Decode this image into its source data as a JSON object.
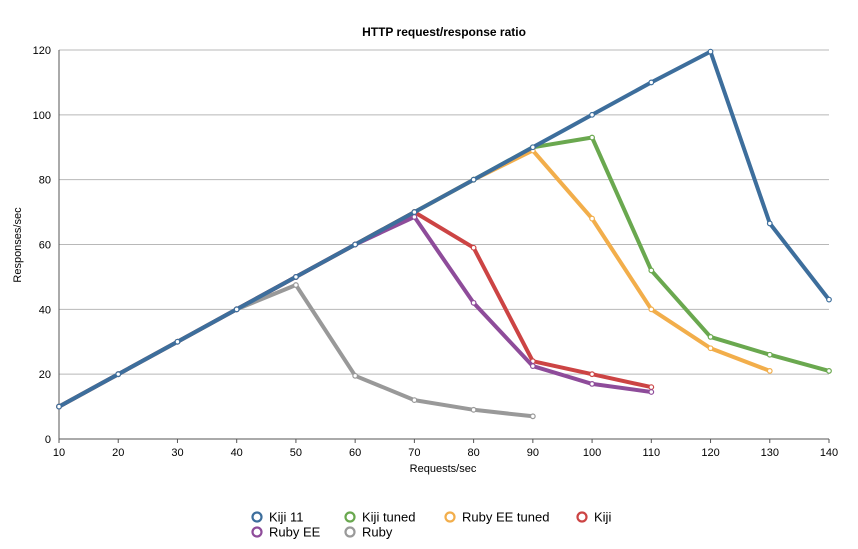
{
  "chart_data": {
    "type": "line",
    "title": "HTTP request/response ratio",
    "xlabel": "Requests/sec",
    "ylabel": "Responses/sec",
    "xlim": [
      10,
      140
    ],
    "ylim": [
      0,
      120
    ],
    "x_ticks": [
      10,
      20,
      30,
      40,
      50,
      60,
      70,
      80,
      90,
      100,
      110,
      120,
      130,
      140
    ],
    "y_ticks": [
      0,
      20,
      40,
      60,
      80,
      100,
      120
    ],
    "grid": true,
    "legend_position": "bottom",
    "series": [
      {
        "name": "Kiji tuned",
        "color": "#6aa84f",
        "points": [
          [
            10,
            10
          ],
          [
            20,
            20
          ],
          [
            30,
            30
          ],
          [
            40,
            40
          ],
          [
            50,
            50
          ],
          [
            60,
            60
          ],
          [
            70,
            70
          ],
          [
            80,
            80
          ],
          [
            90,
            90
          ],
          [
            100,
            93
          ],
          [
            110,
            52
          ],
          [
            120,
            31.5
          ],
          [
            130,
            26
          ],
          [
            140,
            21
          ]
        ]
      },
      {
        "name": "Ruby EE tuned",
        "color": "#f2ae4b",
        "points": [
          [
            10,
            10
          ],
          [
            20,
            20
          ],
          [
            30,
            30
          ],
          [
            40,
            40
          ],
          [
            50,
            50
          ],
          [
            60,
            60
          ],
          [
            70,
            70
          ],
          [
            80,
            80
          ],
          [
            90,
            89
          ],
          [
            100,
            68
          ],
          [
            110,
            40
          ],
          [
            120,
            28
          ],
          [
            130,
            21
          ]
        ]
      },
      {
        "name": "Kiji",
        "color": "#cc4444",
        "points": [
          [
            10,
            10
          ],
          [
            20,
            20
          ],
          [
            30,
            30
          ],
          [
            40,
            40
          ],
          [
            50,
            50
          ],
          [
            60,
            60
          ],
          [
            70,
            70
          ],
          [
            80,
            59
          ],
          [
            90,
            24
          ],
          [
            100,
            20
          ],
          [
            110,
            16
          ]
        ]
      },
      {
        "name": "Ruby EE",
        "color": "#8e4c9a",
        "points": [
          [
            10,
            10
          ],
          [
            20,
            20
          ],
          [
            30,
            30
          ],
          [
            40,
            40
          ],
          [
            50,
            50
          ],
          [
            60,
            60
          ],
          [
            70,
            68.5
          ],
          [
            80,
            42
          ],
          [
            90,
            22.5
          ],
          [
            100,
            17
          ],
          [
            110,
            14.5
          ]
        ]
      },
      {
        "name": "Ruby",
        "color": "#999999",
        "points": [
          [
            10,
            10
          ],
          [
            20,
            20
          ],
          [
            30,
            30
          ],
          [
            40,
            40
          ],
          [
            50,
            47.5
          ],
          [
            60,
            19.5
          ],
          [
            70,
            12
          ],
          [
            80,
            9
          ],
          [
            90,
            7
          ]
        ]
      },
      {
        "name": "Kiji 11",
        "color": "#3d6e9c",
        "points": [
          [
            10,
            10
          ],
          [
            20,
            20
          ],
          [
            30,
            30
          ],
          [
            40,
            40
          ],
          [
            50,
            50
          ],
          [
            60,
            60
          ],
          [
            70,
            70
          ],
          [
            80,
            80
          ],
          [
            90,
            90
          ],
          [
            100,
            100
          ],
          [
            110,
            110
          ],
          [
            120,
            119.5
          ],
          [
            130,
            66.5
          ],
          [
            140,
            43
          ]
        ]
      }
    ],
    "legend": [
      {
        "name": "Kiji 11",
        "color": "#3d6e9c"
      },
      {
        "name": "Kiji tuned",
        "color": "#6aa84f"
      },
      {
        "name": "Ruby EE tuned",
        "color": "#f2ae4b"
      },
      {
        "name": "Kiji",
        "color": "#cc4444"
      },
      {
        "name": "Ruby EE",
        "color": "#8e4c9a"
      },
      {
        "name": "Ruby",
        "color": "#999999"
      }
    ]
  }
}
